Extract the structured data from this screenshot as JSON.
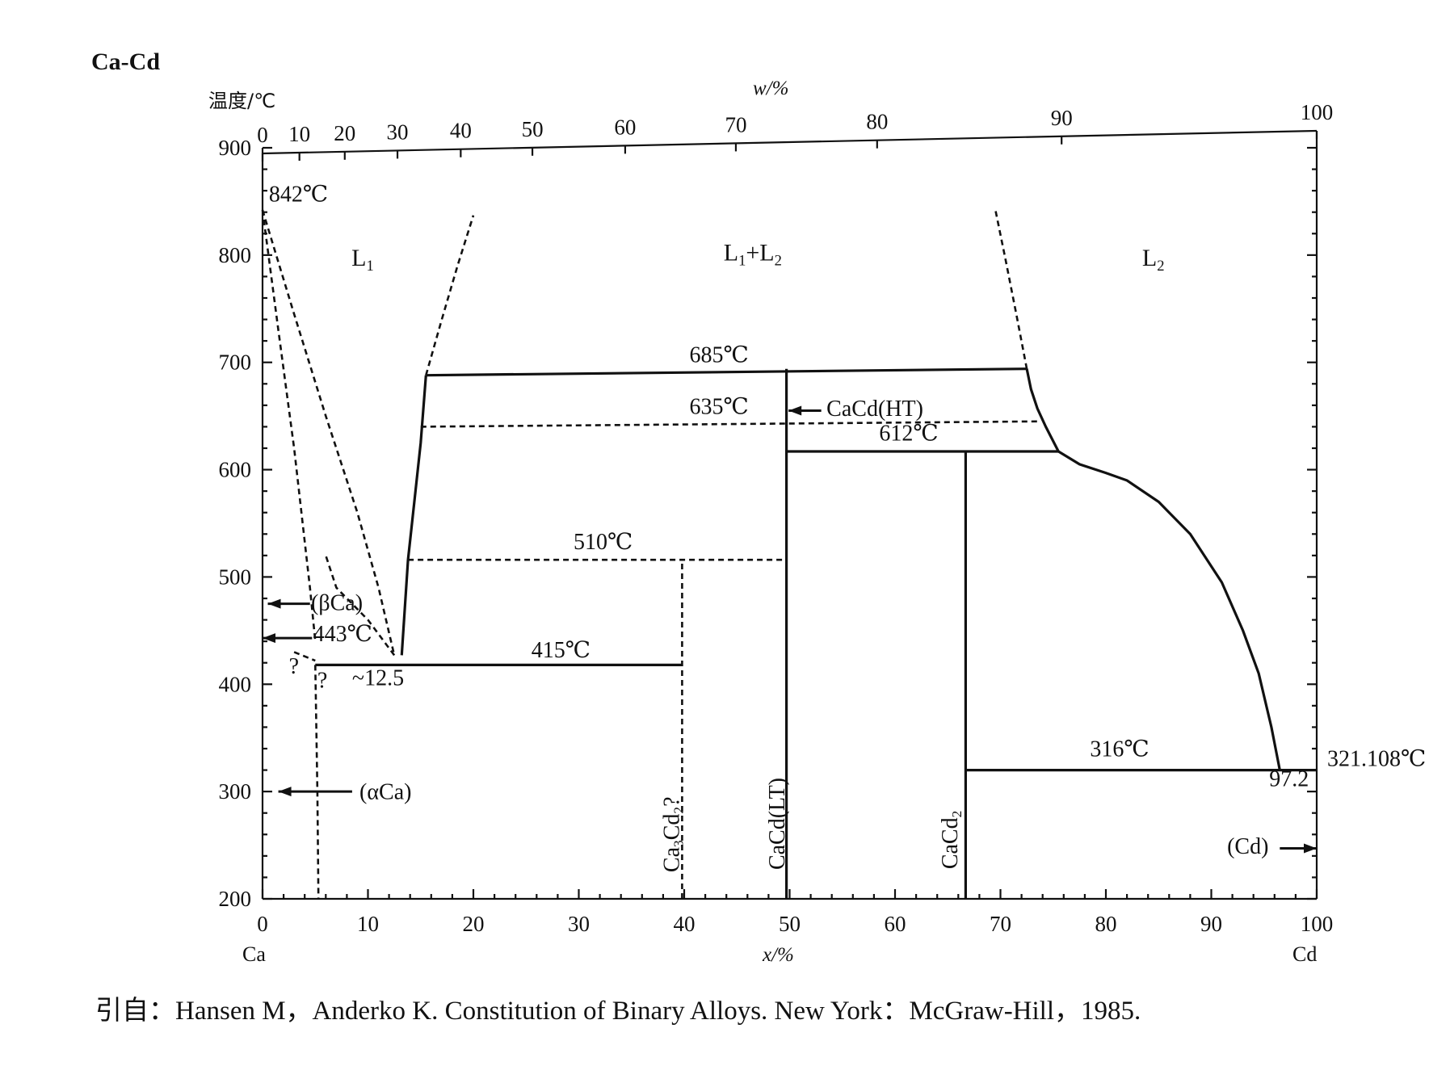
{
  "chart_data": {
    "type": "phase-diagram",
    "title": "Ca-Cd",
    "ylabel": "温度/℃",
    "xlabel": "x/%",
    "top_axis_label": "w/%",
    "left_element": "Ca",
    "right_element": "Cd",
    "xlim": [
      0,
      100
    ],
    "ylim": [
      200,
      900
    ],
    "x_ticks": [
      0,
      10,
      20,
      30,
      40,
      50,
      60,
      70,
      80,
      90,
      100
    ],
    "y_ticks": [
      200,
      300,
      400,
      500,
      600,
      700,
      800,
      900
    ],
    "w_ticks": [
      {
        "w": 0,
        "x": 0
      },
      {
        "w": 10,
        "x": 3.5
      },
      {
        "w": 20,
        "x": 7.8
      },
      {
        "w": 30,
        "x": 12.8
      },
      {
        "w": 40,
        "x": 18.8
      },
      {
        "w": 50,
        "x": 25.6
      },
      {
        "w": 60,
        "x": 34.4
      },
      {
        "w": 70,
        "x": 44.9
      },
      {
        "w": 80,
        "x": 58.3
      },
      {
        "w": 90,
        "x": 75.8
      },
      {
        "w": 100,
        "x": 100
      }
    ],
    "region_labels": [
      {
        "text": "L₁",
        "x": 9.5,
        "y": 790
      },
      {
        "text": "L₁+L₂",
        "x": 46.5,
        "y": 795
      },
      {
        "text": "L₂",
        "x": 84.5,
        "y": 790
      }
    ],
    "annotations": [
      {
        "text": "842℃",
        "x": 0.6,
        "y": 850
      },
      {
        "text": "685℃",
        "x": 40.5,
        "y": 700
      },
      {
        "text": "635℃",
        "x": 40.5,
        "y": 652
      },
      {
        "text": "612℃",
        "x": 58.5,
        "y": 627
      },
      {
        "text": "510℃",
        "x": 29.5,
        "y": 526
      },
      {
        "text": "443℃",
        "x": 4.8,
        "y": 440
      },
      {
        "text": "415℃",
        "x": 25.5,
        "y": 425
      },
      {
        "text": "~12.5",
        "x": 8.5,
        "y": 399
      },
      {
        "text": "?",
        "x": 2.5,
        "y": 410
      },
      {
        "text": "?",
        "x": 5.2,
        "y": 397
      },
      {
        "text": "316℃",
        "x": 78.5,
        "y": 333
      },
      {
        "text": "321.108℃",
        "x": 101,
        "y": 324
      },
      {
        "text": "97.2",
        "x": 95.5,
        "y": 305
      },
      {
        "text": "(βCa)",
        "x": 4.6,
        "y": 469
      },
      {
        "text": "(αCa)",
        "x": 9.2,
        "y": 293
      },
      {
        "text": "(Cd)",
        "x": 91.5,
        "y": 242
      },
      {
        "text": "CaCd(HT)",
        "x": 53.5,
        "y": 650
      }
    ],
    "compounds": [
      {
        "text": "Ca₃Cd₂?",
        "x": 39.5,
        "y": 260
      },
      {
        "text": "CaCd(LT)",
        "x": 49.5,
        "y": 270
      },
      {
        "text": "CaCd₂",
        "x": 65.9,
        "y": 255
      }
    ],
    "solid_lines": [
      {
        "name": "monotectic-685",
        "points": [
          [
            15.5,
            688
          ],
          [
            72.5,
            694
          ]
        ]
      },
      {
        "name": "peritectic-612",
        "points": [
          [
            49.7,
            617
          ],
          [
            75.5,
            617
          ]
        ]
      },
      {
        "name": "eutectic-415",
        "points": [
          [
            5.0,
            418
          ],
          [
            39.8,
            418
          ]
        ]
      },
      {
        "name": "eutectic-316",
        "points": [
          [
            66.7,
            320
          ],
          [
            100,
            320
          ]
        ]
      },
      {
        "name": "cacd-lt",
        "points": [
          [
            49.7,
            200
          ],
          [
            49.7,
            694
          ]
        ]
      },
      {
        "name": "cacd2",
        "points": [
          [
            66.7,
            200
          ],
          [
            66.7,
            617
          ]
        ]
      },
      {
        "name": "liquidus-left",
        "points": [
          [
            13.2,
            427
          ],
          [
            13.8,
            516
          ],
          [
            14.4,
            570
          ],
          [
            15.0,
            625
          ],
          [
            15.5,
            688
          ]
        ]
      },
      {
        "name": "liquidus-right",
        "points": [
          [
            72.5,
            694
          ],
          [
            72.9,
            675
          ],
          [
            73.5,
            657
          ],
          [
            74.3,
            640
          ],
          [
            75.5,
            617
          ],
          [
            77.5,
            605
          ],
          [
            80,
            597
          ],
          [
            82,
            590
          ],
          [
            85,
            570
          ],
          [
            88,
            540
          ],
          [
            91,
            495
          ],
          [
            93,
            450
          ],
          [
            94.5,
            410
          ],
          [
            95.7,
            360
          ],
          [
            96.2,
            335
          ],
          [
            96.5,
            320
          ]
        ]
      }
    ],
    "dashed_lines": [
      {
        "name": "liquidus-l1-dome",
        "points": [
          [
            15.5,
            688
          ],
          [
            17,
            740
          ],
          [
            18.5,
            790
          ],
          [
            20,
            837
          ]
        ]
      },
      {
        "name": "liquidus-l2-dome",
        "points": [
          [
            72.5,
            694
          ],
          [
            71.5,
            745
          ],
          [
            70.5,
            795
          ],
          [
            69.5,
            843
          ]
        ]
      },
      {
        "name": "metatectic-635",
        "points": [
          [
            15.0,
            640
          ],
          [
            73.5,
            645
          ]
        ]
      },
      {
        "name": "peritectic-510",
        "points": [
          [
            13.8,
            516
          ],
          [
            49.7,
            516
          ]
        ]
      },
      {
        "name": "ca3cd2",
        "points": [
          [
            39.8,
            200
          ],
          [
            39.8,
            516
          ]
        ]
      },
      {
        "name": "liquidus-ca",
        "points": [
          [
            0,
            842
          ],
          [
            3,
            745
          ],
          [
            6,
            650
          ],
          [
            9,
            560
          ],
          [
            11,
            490
          ],
          [
            12.5,
            427
          ]
        ]
      },
      {
        "name": "solidus-beta",
        "points": [
          [
            0,
            842
          ],
          [
            1.5,
            730
          ],
          [
            3,
            620
          ],
          [
            4.5,
            490
          ],
          [
            5.0,
            440
          ]
        ]
      },
      {
        "name": "beta-boundary",
        "points": [
          [
            12.5,
            427
          ],
          [
            10,
            460
          ],
          [
            7,
            490
          ],
          [
            6,
            520
          ]
        ]
      },
      {
        "name": "alpha-beta",
        "points": [
          [
            3,
            430
          ],
          [
            5.0,
            422
          ]
        ]
      },
      {
        "name": "alpha-solvus",
        "points": [
          [
            5.0,
            418
          ],
          [
            5.2,
            300
          ],
          [
            5.3,
            200
          ]
        ]
      }
    ],
    "arrows": [
      {
        "name": "beta-ca-arrow",
        "from": [
          4.5,
          475
        ],
        "to": [
          0.5,
          475
        ]
      },
      {
        "name": "443-arrow",
        "from": [
          4.7,
          443
        ],
        "to": [
          0,
          443
        ]
      },
      {
        "name": "alpha-ca-arrow",
        "from": [
          8.5,
          300
        ],
        "to": [
          1.5,
          300
        ]
      },
      {
        "name": "cacd-ht-arrow",
        "from": [
          53.0,
          655
        ],
        "to": [
          49.9,
          655
        ]
      },
      {
        "name": "cd-arrow",
        "from": [
          96.5,
          247
        ],
        "to": [
          100,
          247
        ]
      }
    ]
  },
  "citation": "引自：Hansen M，Anderko K. Constitution of Binary Alloys. New York：McGraw-Hill，1985."
}
